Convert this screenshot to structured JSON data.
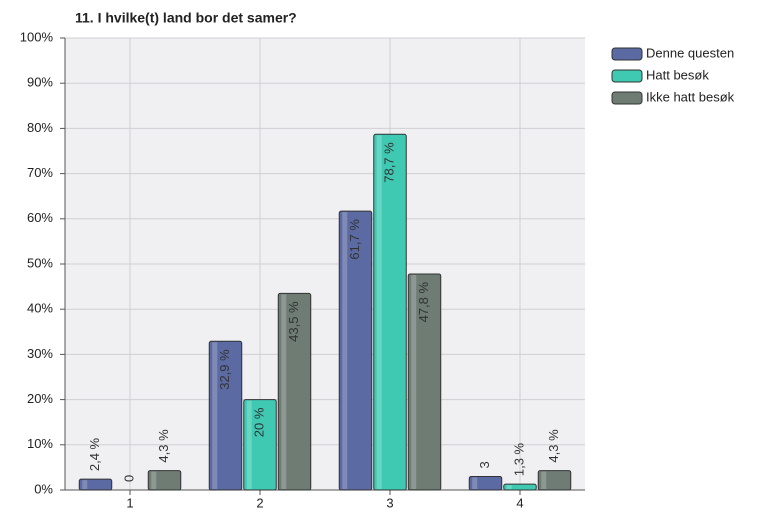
{
  "chart_data": {
    "type": "bar",
    "title": "11. I hvilke(t) land bor det samer?",
    "categories": [
      "1",
      "2",
      "3",
      "4"
    ],
    "series": [
      {
        "name": "Denne questen",
        "color": "#5b6aa3",
        "values": [
          2.4,
          32.9,
          61.7,
          3
        ],
        "value_labels": [
          "2,4 %",
          "32,9 %",
          "61,7 %",
          "3"
        ]
      },
      {
        "name": "Hatt besøk",
        "color": "#3fc9b2",
        "values": [
          0,
          20,
          78.7,
          1.3
        ],
        "value_labels": [
          "0",
          "20 %",
          "78,7 %",
          "1,3 %"
        ]
      },
      {
        "name": "Ikke hatt besøk",
        "color": "#6e7c74",
        "values": [
          4.3,
          43.5,
          47.8,
          4.3
        ],
        "value_labels": [
          "4,3 %",
          "43,5 %",
          "47,8 %",
          "4,3 %"
        ]
      }
    ],
    "ylim": [
      0,
      100
    ],
    "yticks": [
      {
        "value": 0,
        "label": "0%"
      },
      {
        "value": 10,
        "label": "10%"
      },
      {
        "value": 20,
        "label": "20%"
      },
      {
        "value": 30,
        "label": "30%"
      },
      {
        "value": 40,
        "label": "40%"
      },
      {
        "value": 50,
        "label": "50%"
      },
      {
        "value": 60,
        "label": "60%"
      },
      {
        "value": 70,
        "label": "70%"
      },
      {
        "value": 80,
        "label": "80%"
      },
      {
        "value": 90,
        "label": "90%"
      },
      {
        "value": 100,
        "label": "100%"
      }
    ],
    "grid": true
  }
}
